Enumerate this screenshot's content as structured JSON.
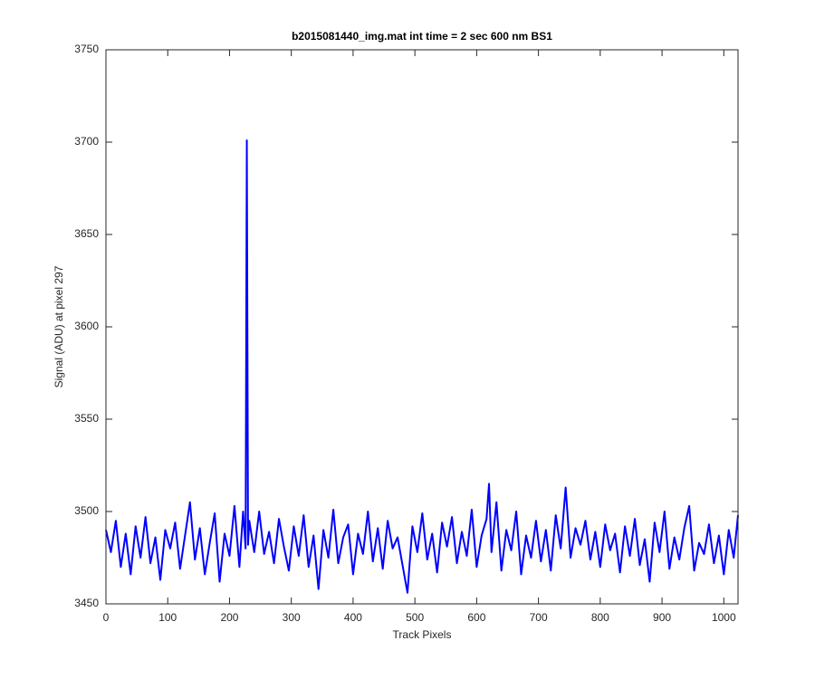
{
  "chart_data": {
    "type": "line",
    "title": "b2015081440_img.mat int time = 2 sec  600 nm BS1",
    "xlabel": "Track Pixels",
    "ylabel": "Signal (ADU) at pixel 297",
    "x": [
      0,
      8,
      16,
      24,
      32,
      40,
      48,
      56,
      64,
      72,
      80,
      88,
      96,
      104,
      112,
      120,
      128,
      136,
      144,
      152,
      160,
      168,
      176,
      184,
      192,
      200,
      208,
      216,
      222,
      226,
      228,
      230,
      232,
      240,
      248,
      256,
      264,
      272,
      280,
      288,
      296,
      304,
      312,
      320,
      328,
      336,
      344,
      352,
      360,
      368,
      376,
      384,
      392,
      400,
      408,
      416,
      424,
      432,
      440,
      448,
      456,
      464,
      472,
      480,
      488,
      496,
      504,
      512,
      520,
      528,
      536,
      544,
      552,
      560,
      568,
      576,
      584,
      592,
      600,
      608,
      616,
      620,
      624,
      632,
      640,
      648,
      656,
      664,
      672,
      680,
      688,
      696,
      704,
      712,
      720,
      728,
      736,
      744,
      752,
      760,
      768,
      776,
      784,
      792,
      800,
      808,
      816,
      824,
      832,
      840,
      848,
      856,
      864,
      872,
      880,
      888,
      896,
      904,
      912,
      920,
      928,
      936,
      944,
      952,
      960,
      968,
      976,
      984,
      992,
      1000,
      1008,
      1016,
      1023
    ],
    "series": [
      {
        "name": "signal",
        "color": "#0000ff",
        "values": [
          3490,
          3478,
          3495,
          3470,
          3488,
          3466,
          3492,
          3475,
          3497,
          3472,
          3486,
          3463,
          3490,
          3480,
          3494,
          3469,
          3487,
          3505,
          3474,
          3491,
          3466,
          3483,
          3499,
          3462,
          3488,
          3476,
          3503,
          3470,
          3500,
          3480,
          3701,
          3482,
          3495,
          3478,
          3500,
          3477,
          3489,
          3472,
          3496,
          3481,
          3468,
          3492,
          3476,
          3498,
          3470,
          3487,
          3458,
          3490,
          3475,
          3501,
          3472,
          3486,
          3493,
          3466,
          3488,
          3477,
          3500,
          3473,
          3491,
          3469,
          3495,
          3480,
          3486,
          3471,
          3456,
          3492,
          3478,
          3499,
          3474,
          3488,
          3467,
          3494,
          3481,
          3497,
          3472,
          3489,
          3476,
          3501,
          3470,
          3487,
          3496,
          3515,
          3478,
          3505,
          3468,
          3490,
          3479,
          3500,
          3466,
          3487,
          3475,
          3495,
          3473,
          3490,
          3468,
          3498,
          3480,
          3513,
          3475,
          3491,
          3482,
          3495,
          3474,
          3489,
          3470,
          3493,
          3479,
          3488,
          3467,
          3492,
          3476,
          3496,
          3471,
          3485,
          3462,
          3494,
          3478,
          3500,
          3469,
          3486,
          3474,
          3491,
          3503,
          3468,
          3483,
          3477,
          3493,
          3472,
          3487,
          3466,
          3490,
          3475,
          3498
        ]
      }
    ],
    "xlim": [
      0,
      1023
    ],
    "xticks": [
      0,
      100,
      200,
      300,
      400,
      500,
      600,
      700,
      800,
      900,
      1000
    ],
    "ylim": [
      3450,
      3750
    ],
    "yticks": [
      3450,
      3500,
      3550,
      3600,
      3650,
      3700,
      3750
    ]
  }
}
